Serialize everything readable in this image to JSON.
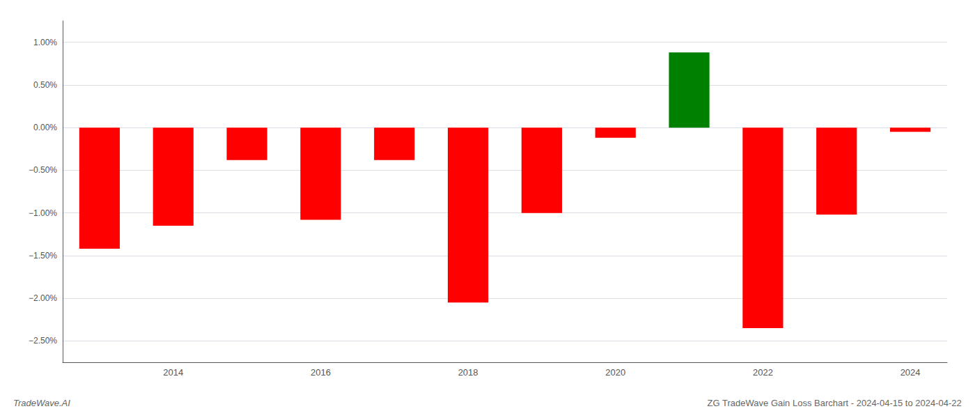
{
  "chart_data": {
    "type": "bar",
    "title": "ZG TradeWave Gain Loss Barchart - 2024-04-15 to 2024-04-22",
    "annotations": [
      "TradeWave.AI"
    ],
    "categories": [
      null,
      "2014",
      null,
      "2016",
      null,
      "2018",
      null,
      "2020",
      null,
      "2022",
      null,
      "2024"
    ],
    "values": [
      -0.0142,
      -0.0115,
      -0.0038,
      -0.0108,
      -0.0038,
      -0.0205,
      -0.01,
      -0.0012,
      0.0088,
      -0.0235,
      -0.0102,
      -0.0005
    ],
    "colors": [
      "#ff0000",
      "#ff0000",
      "#ff0000",
      "#ff0000",
      "#ff0000",
      "#ff0000",
      "#ff0000",
      "#ff0000",
      "#008000",
      "#ff0000",
      "#ff0000",
      "#ff0000"
    ],
    "ylim": [
      -0.0275,
      0.0125
    ],
    "yticks": [
      {
        "value": -0.025,
        "label": "−2.50%"
      },
      {
        "value": -0.02,
        "label": "−2.00%"
      },
      {
        "value": -0.015,
        "label": "−1.50%"
      },
      {
        "value": -0.01,
        "label": "−1.00%"
      },
      {
        "value": -0.005,
        "label": "−0.50%"
      },
      {
        "value": 0.0,
        "label": "0.00%"
      },
      {
        "value": 0.005,
        "label": "0.50%"
      },
      {
        "value": 0.01,
        "label": "1.00%"
      }
    ],
    "grid": true
  }
}
